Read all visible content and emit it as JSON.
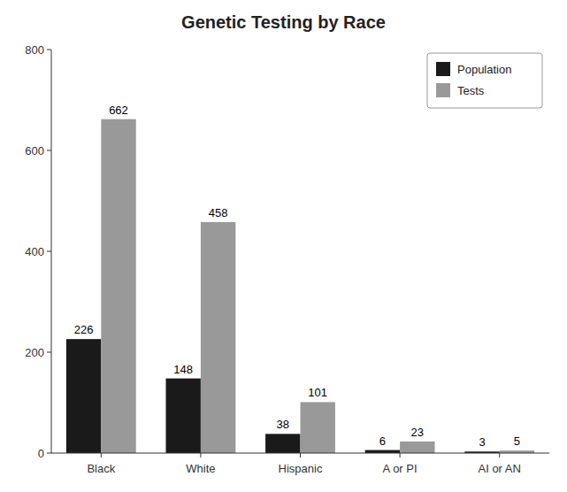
{
  "chart_data": {
    "type": "bar",
    "title": "Genetic Testing by Race",
    "categories": [
      "Black",
      "White",
      "Hispanic",
      "A or PI",
      "AI or AN"
    ],
    "series": [
      {
        "name": "Population",
        "color": "#1a1a1a",
        "values": [
          226,
          148,
          38,
          6,
          3
        ]
      },
      {
        "name": "Tests",
        "color": "#999999",
        "values": [
          662,
          458,
          101,
          23,
          5
        ]
      }
    ],
    "ylim": [
      0,
      800
    ],
    "yticks": [
      0,
      200,
      400,
      600,
      800
    ],
    "grid": false,
    "legend": "upper right",
    "data_labels": true
  }
}
